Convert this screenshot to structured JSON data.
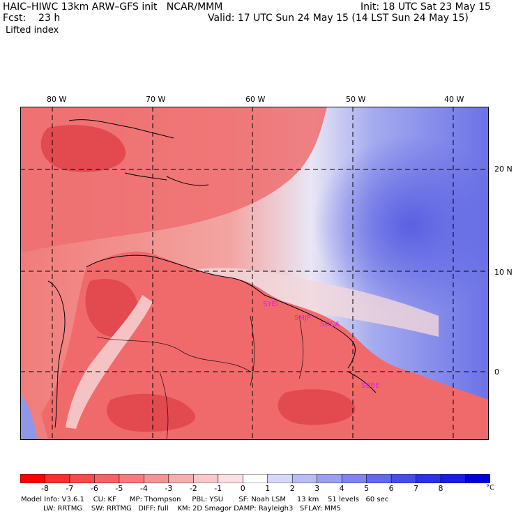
{
  "header": {
    "model": "HAIC–HIWC 13km ARW–GFS init   NCAR/MMM",
    "init": "Init: 18 UTC Sat 23 May 15",
    "fcst": "Fcst:    23 h",
    "valid": "Valid: 17 UTC Sun 24 May 15 (14 LST Sun 24 May 15)",
    "field": "Lifted index"
  },
  "map": {
    "lon_labels": [
      "80 W",
      "70 W",
      "60 W",
      "50 W",
      "40 W"
    ],
    "lat_labels": [
      "20 N",
      "10 N",
      "0"
    ],
    "stations": [
      "SYEI",
      "SMJP",
      "SOCA",
      "SBBE"
    ],
    "colors": {
      "unstable_strong": "#e8474c",
      "unstable_mid": "#f07e7c",
      "unstable_weak": "#f7b4b0",
      "neutral": "#fbe3e0",
      "stable_weak": "#cdd6f5",
      "stable_mid": "#8f9be8",
      "stable_strong": "#5a63e0",
      "station": "#e020e0"
    }
  },
  "colorbar": {
    "ticks": [
      "-8",
      "-7",
      "-6",
      "-5",
      "-4",
      "-3",
      "-2",
      "-1",
      "0",
      "1",
      "2",
      "3",
      "4",
      "5",
      "6",
      "7",
      "8"
    ],
    "unit": "°C",
    "colors": [
      "#ff0000",
      "#ff2e2e",
      "#f94a4a",
      "#f56464",
      "#f47c7c",
      "#f49494",
      "#f5aeae",
      "#f7c8c8",
      "#fae0e0",
      "#ffffff",
      "#d7d9fa",
      "#b8bcf6",
      "#9ca0f2",
      "#8084ef",
      "#6468ed",
      "#484ceb",
      "#2d30ea",
      "#1a1aea",
      "#0000dd"
    ]
  },
  "footer": {
    "line1": "Model Info: V3.6.1    CU: KF      MP: Thompson     PBL: YSU       SF: Noah LSM     13 km    51 levels   60 sec",
    "line2": "LW: RRTMG    SW: RRTMG   DIFF: full    KM: 2D Smagor DAMP: Rayleigh3   SFLAY: MM5"
  }
}
